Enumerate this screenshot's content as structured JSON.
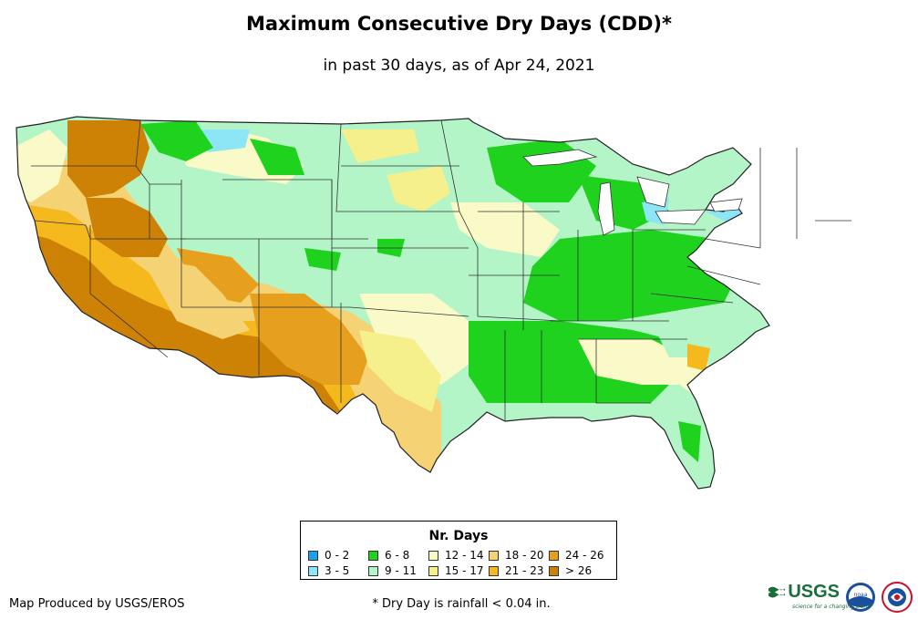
{
  "title": "Maximum Consecutive Dry Days (CDD)*",
  "subtitle": "in past 30 days, as of Apr 24, 2021",
  "legend": {
    "title": "Nr. Days",
    "items": [
      {
        "label": "0 - 2",
        "color": "#1ea0f0"
      },
      {
        "label": "6 - 8",
        "color": "#1ed21e"
      },
      {
        "label": "12 - 14",
        "color": "#fafac8"
      },
      {
        "label": "18 - 20",
        "color": "#f5d273"
      },
      {
        "label": "24 - 26",
        "color": "#e6a01e"
      },
      {
        "label": "3 - 5",
        "color": "#8ce6f5"
      },
      {
        "label": "9 - 11",
        "color": "#b4f5c8"
      },
      {
        "label": "15 - 17",
        "color": "#f5f08c"
      },
      {
        "label": "21 - 23",
        "color": "#f5b91e"
      },
      {
        "label": "> 26",
        "color": "#cd8205"
      }
    ]
  },
  "footer": {
    "producer": "Map Produced by USGS/EROS",
    "footnote": "* Dry Day is rainfall < 0.04 in."
  },
  "logos": {
    "usgs_text": "USGS",
    "usgs_tagline": "science for a changing world",
    "noaa_text": "noaa"
  }
}
